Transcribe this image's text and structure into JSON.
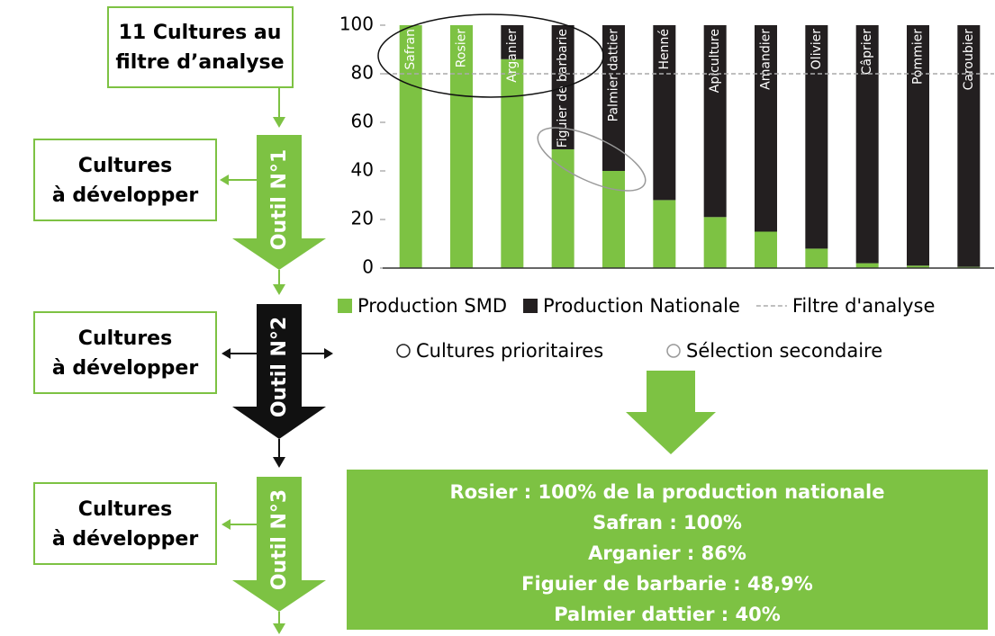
{
  "diagram": {
    "start": [
      "11 Cultures au",
      "filtre d’analyse"
    ],
    "tools": [
      {
        "label": "Outil N°1",
        "result": [
          "Cultures",
          "à développer"
        ]
      },
      {
        "label": "Outil N°2",
        "result": [
          "Cultures",
          "à développer"
        ]
      },
      {
        "label": "Outil N°3",
        "result": [
          "Cultures",
          "à développer"
        ]
      }
    ],
    "circle_legend": [
      "Cultures prioritaires",
      "Sélection secondaire"
    ],
    "summary": [
      "Rosier : 100% de la production nationale",
      "Safran : 100%",
      "Arganier : 86%",
      "Figuier de barbarie : 48,9%",
      "Palmier dattier : 40%"
    ]
  },
  "chart_data": {
    "type": "stacked_bar",
    "categories": [
      "Safran",
      "Rosier",
      "Arganier",
      "Figuier de barbarie",
      "Palmier dattier",
      "Henné",
      "Apiculture",
      "Amandier",
      "Olivier",
      "Câprier",
      "Pommier",
      "Caroubier"
    ],
    "series": [
      {
        "name": "Production SMD",
        "color": "#7dc243",
        "values": [
          100,
          100,
          86,
          48.9,
          40,
          28,
          21,
          15,
          8,
          2,
          1,
          0.5
        ]
      },
      {
        "name": "Production Nationale",
        "color": "#231f20",
        "values": [
          0,
          0,
          14,
          51.1,
          60,
          72,
          79,
          85,
          92,
          98,
          99,
          99.5
        ]
      }
    ],
    "filter": {
      "name": "Filtre d'analyse",
      "value": 80,
      "color": "#aaaaaa"
    },
    "ylim": [
      0,
      100
    ],
    "yticks": [
      0,
      20,
      40,
      60,
      80,
      100
    ]
  }
}
